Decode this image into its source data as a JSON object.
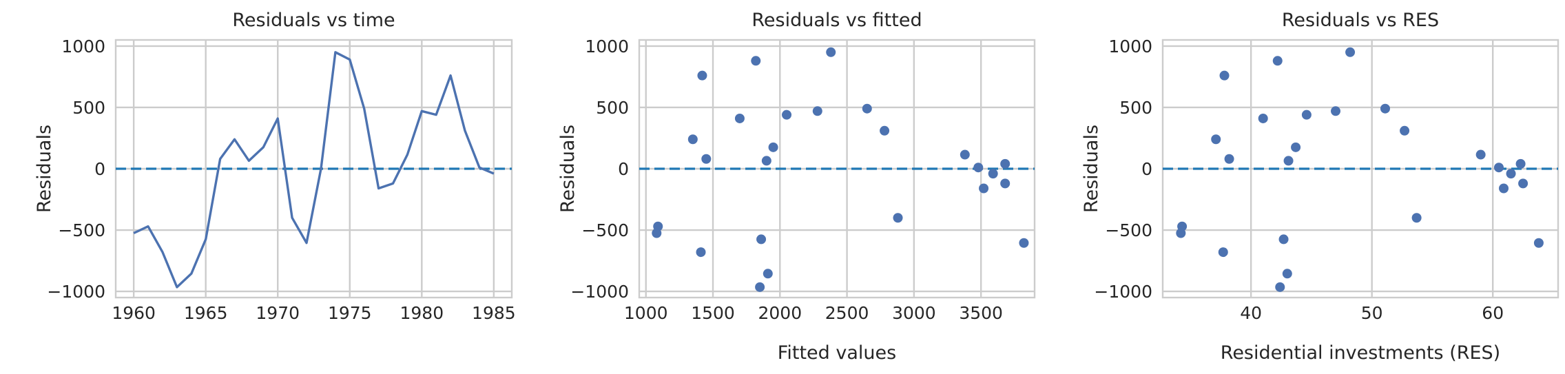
{
  "chart_data": [
    {
      "type": "line",
      "title": "Residuals vs time",
      "xlabel": "",
      "ylabel": "Residuals",
      "xlim": [
        1958.75,
        1986.25
      ],
      "ylim": [
        -1050,
        1050
      ],
      "xticks": [
        1960,
        1965,
        1970,
        1975,
        1980,
        1985
      ],
      "yticks": [
        -1000,
        -500,
        0,
        500,
        1000
      ],
      "grid": true,
      "reference_line": 0,
      "x": [
        1960,
        1961,
        1962,
        1963,
        1964,
        1965,
        1966,
        1967,
        1968,
        1969,
        1970,
        1971,
        1972,
        1973,
        1974,
        1975,
        1976,
        1977,
        1978,
        1979,
        1980,
        1981,
        1982,
        1983,
        1984,
        1985
      ],
      "y": [
        -525,
        -470,
        -680,
        -965,
        -855,
        -575,
        80,
        240,
        65,
        175,
        410,
        -400,
        -605,
        0,
        950,
        890,
        490,
        -160,
        -120,
        115,
        470,
        440,
        760,
        310,
        10,
        -40
      ]
    },
    {
      "type": "scatter",
      "title": "Residuals vs fitted",
      "xlabel": "Fitted values",
      "ylabel": "Residuals",
      "xlim": [
        950,
        3900
      ],
      "ylim": [
        -1050,
        1050
      ],
      "xticks": [
        1000,
        1500,
        2000,
        2500,
        3000,
        3500
      ],
      "yticks": [
        -1000,
        -500,
        0,
        500,
        1000
      ],
      "grid": true,
      "reference_line": 0,
      "x": [
        1080,
        1090,
        1350,
        1410,
        1420,
        1450,
        1700,
        1820,
        1850,
        1860,
        1900,
        1910,
        1950,
        2050,
        2280,
        2380,
        2650,
        2780,
        2880,
        3380,
        3480,
        3520,
        3590,
        3680,
        3680,
        3820
      ],
      "y": [
        -525,
        -470,
        240,
        -680,
        760,
        80,
        410,
        880,
        -965,
        -575,
        65,
        -855,
        175,
        440,
        470,
        950,
        490,
        310,
        -400,
        115,
        10,
        -160,
        -40,
        40,
        -120,
        -605
      ]
    },
    {
      "type": "scatter",
      "title": "Residuals vs RES",
      "xlabel": "Residential investments (RES)",
      "ylabel": "Residuals",
      "xlim": [
        32.7,
        65.4
      ],
      "ylim": [
        -1050,
        1050
      ],
      "xticks": [
        40,
        50,
        60
      ],
      "yticks": [
        -1000,
        -500,
        0,
        500,
        1000
      ],
      "grid": true,
      "reference_line": 0,
      "x": [
        34.2,
        34.3,
        37.1,
        37.7,
        37.8,
        38.2,
        41.0,
        42.2,
        42.4,
        42.7,
        43.0,
        43.1,
        43.7,
        44.6,
        47.0,
        48.2,
        51.1,
        52.7,
        53.7,
        59.0,
        60.5,
        60.9,
        61.5,
        62.3,
        62.5,
        63.8
      ],
      "y": [
        -525,
        -470,
        240,
        -680,
        760,
        80,
        410,
        880,
        -965,
        -575,
        -855,
        65,
        175,
        440,
        470,
        950,
        490,
        310,
        -400,
        115,
        10,
        -160,
        -40,
        40,
        -120,
        -605
      ]
    }
  ]
}
